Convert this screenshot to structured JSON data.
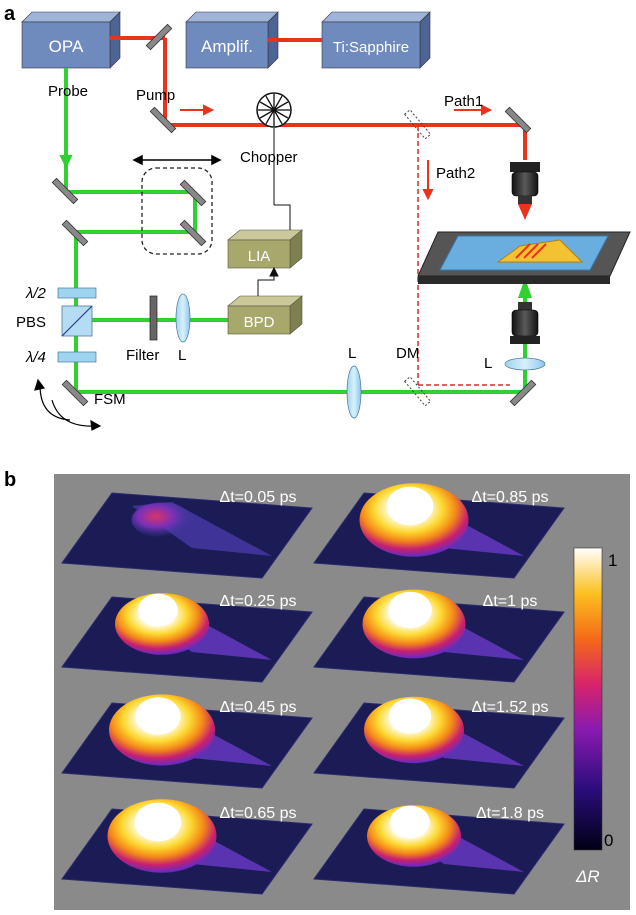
{
  "panel_a": {
    "label": "a",
    "boxes": {
      "opa": "OPA",
      "amplifier": "Amplif.",
      "laser": "Ti:Sapphire",
      "lia": "LIA",
      "bpd": "BPD"
    },
    "labels": {
      "probe": "Probe",
      "pump": "Pump",
      "chopper": "Chopper",
      "path1": "Path1",
      "path2": "Path2",
      "lambda_half": "λ/2",
      "pbs": "PBS",
      "lambda_quarter": "λ/4",
      "filter": "Filter",
      "lens_left": "L",
      "lens_mid": "L",
      "dm": "DM",
      "lens_right": "L",
      "fsm": "FSM"
    },
    "colors": {
      "pump_beam": "#e8341c",
      "probe_beam": "#2fd02f",
      "box_blue": "#6f8bbd",
      "box_olive": "#a6a86c"
    }
  },
  "panel_b": {
    "label": "b",
    "frames": [
      {
        "label": "Δt=0.05 ps",
        "intensity": 0.15
      },
      {
        "label": "Δt=0.85 ps",
        "intensity": 0.95
      },
      {
        "label": "Δt=0.25 ps",
        "intensity": 0.7
      },
      {
        "label": "Δt=1 ps",
        "intensity": 0.85
      },
      {
        "label": "Δt=0.45 ps",
        "intensity": 0.9
      },
      {
        "label": "Δt=1.52 ps",
        "intensity": 0.8
      },
      {
        "label": "Δt=0.65 ps",
        "intensity": 0.95
      },
      {
        "label": "Δt=1.8 ps",
        "intensity": 0.7
      }
    ],
    "colorbar": {
      "max_label": "1",
      "min_label": "0",
      "title": "ΔR"
    },
    "colors": {
      "background": "#8a8a8a",
      "base": "#1b1b55"
    }
  }
}
